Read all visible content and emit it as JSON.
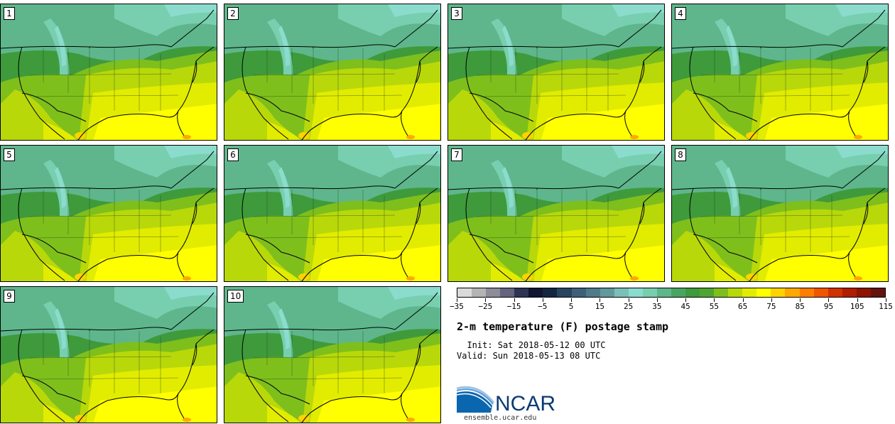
{
  "panels": [
    "1",
    "2",
    "3",
    "4",
    "5",
    "6",
    "7",
    "8",
    "9",
    "10"
  ],
  "colorbar": {
    "colors": [
      "#dadada",
      "#b4b4b4",
      "#8c8c9a",
      "#64647e",
      "#2e3454",
      "#101632",
      "#14263f",
      "#29445f",
      "#3e5f78",
      "#4f7a88",
      "#62999a",
      "#7ac0b8",
      "#8cdccd",
      "#77cfaf",
      "#5fb68c",
      "#48a561",
      "#3e9a3c",
      "#4fa532",
      "#7fbf1c",
      "#b8d80a",
      "#e2ec00",
      "#ffff00",
      "#ffd200",
      "#ffa800",
      "#ff7d00",
      "#f05500",
      "#d03200",
      "#b01d00",
      "#8c1400",
      "#641410"
    ],
    "tick_labels": [
      "−35",
      "−25",
      "−15",
      "−5",
      "5",
      "15",
      "25",
      "35",
      "45",
      "55",
      "65",
      "75",
      "85",
      "95",
      "105",
      "115"
    ]
  },
  "title": "2-m temperature (F) postage stamp",
  "init": "  Init: Sat 2018-05-12 00 UTC",
  "valid": "Valid: Sun 2018-05-13 08 UTC",
  "logo": {
    "text": "NCAR",
    "colors": {
      "arc_light": "#9dc3e6",
      "arc_dark": "#0b66b0",
      "text": "#0b3a73"
    }
  },
  "site": "ensemble.ucar.edu"
}
